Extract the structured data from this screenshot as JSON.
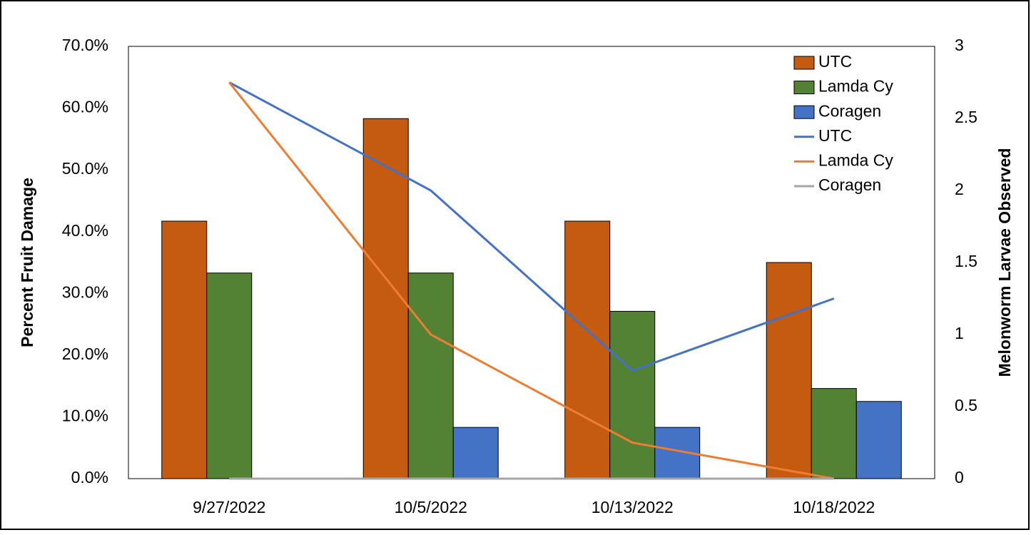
{
  "chart_data": {
    "type": "combo",
    "y_label": "Percent Fruit Damage",
    "y2_label": "Melonworm Larvae Observed",
    "categories": [
      "9/27/2022",
      "10/5/2022",
      "10/13/2022",
      "10/18/2022"
    ],
    "ylim": [
      0,
      70
    ],
    "yticks": [
      {
        "value": 0,
        "label": "0.0%"
      },
      {
        "value": 10,
        "label": "10.0%"
      },
      {
        "value": 20,
        "label": "20.0%"
      },
      {
        "value": 30,
        "label": "30.0%"
      },
      {
        "value": 40,
        "label": "40.0%"
      },
      {
        "value": 50,
        "label": "50.0%"
      },
      {
        "value": 60,
        "label": "60.0%"
      },
      {
        "value": 70,
        "label": "70.0%"
      }
    ],
    "y2lim": [
      0,
      3
    ],
    "y2ticks": [
      0,
      0.5,
      1,
      1.5,
      2,
      2.5,
      3
    ],
    "grid": false,
    "legend": "top-right",
    "series": [
      {
        "name": "UTC",
        "type": "bar",
        "color": "#c55a11",
        "values": [
          41.7,
          58.3,
          41.7,
          35.0
        ]
      },
      {
        "name": "Lamda Cy",
        "type": "bar",
        "color": "#548235",
        "values": [
          33.3,
          33.3,
          27.1,
          14.6
        ]
      },
      {
        "name": "Coragen",
        "type": "bar",
        "color": "#4472c4",
        "values": [
          0,
          8.3,
          8.3,
          12.5
        ]
      },
      {
        "name": "UTC",
        "type": "line",
        "axis": "y2",
        "color": "#4472c4",
        "values": [
          2.75,
          2.0,
          0.75,
          1.25
        ]
      },
      {
        "name": "Lamda Cy",
        "type": "line",
        "axis": "y2",
        "color": "#ed7d31",
        "values": [
          2.75,
          1.0,
          0.25,
          0
        ]
      },
      {
        "name": "Coragen",
        "type": "line",
        "axis": "y2",
        "color": "#a5a5a5",
        "values": [
          0,
          0,
          0,
          0
        ]
      }
    ]
  }
}
